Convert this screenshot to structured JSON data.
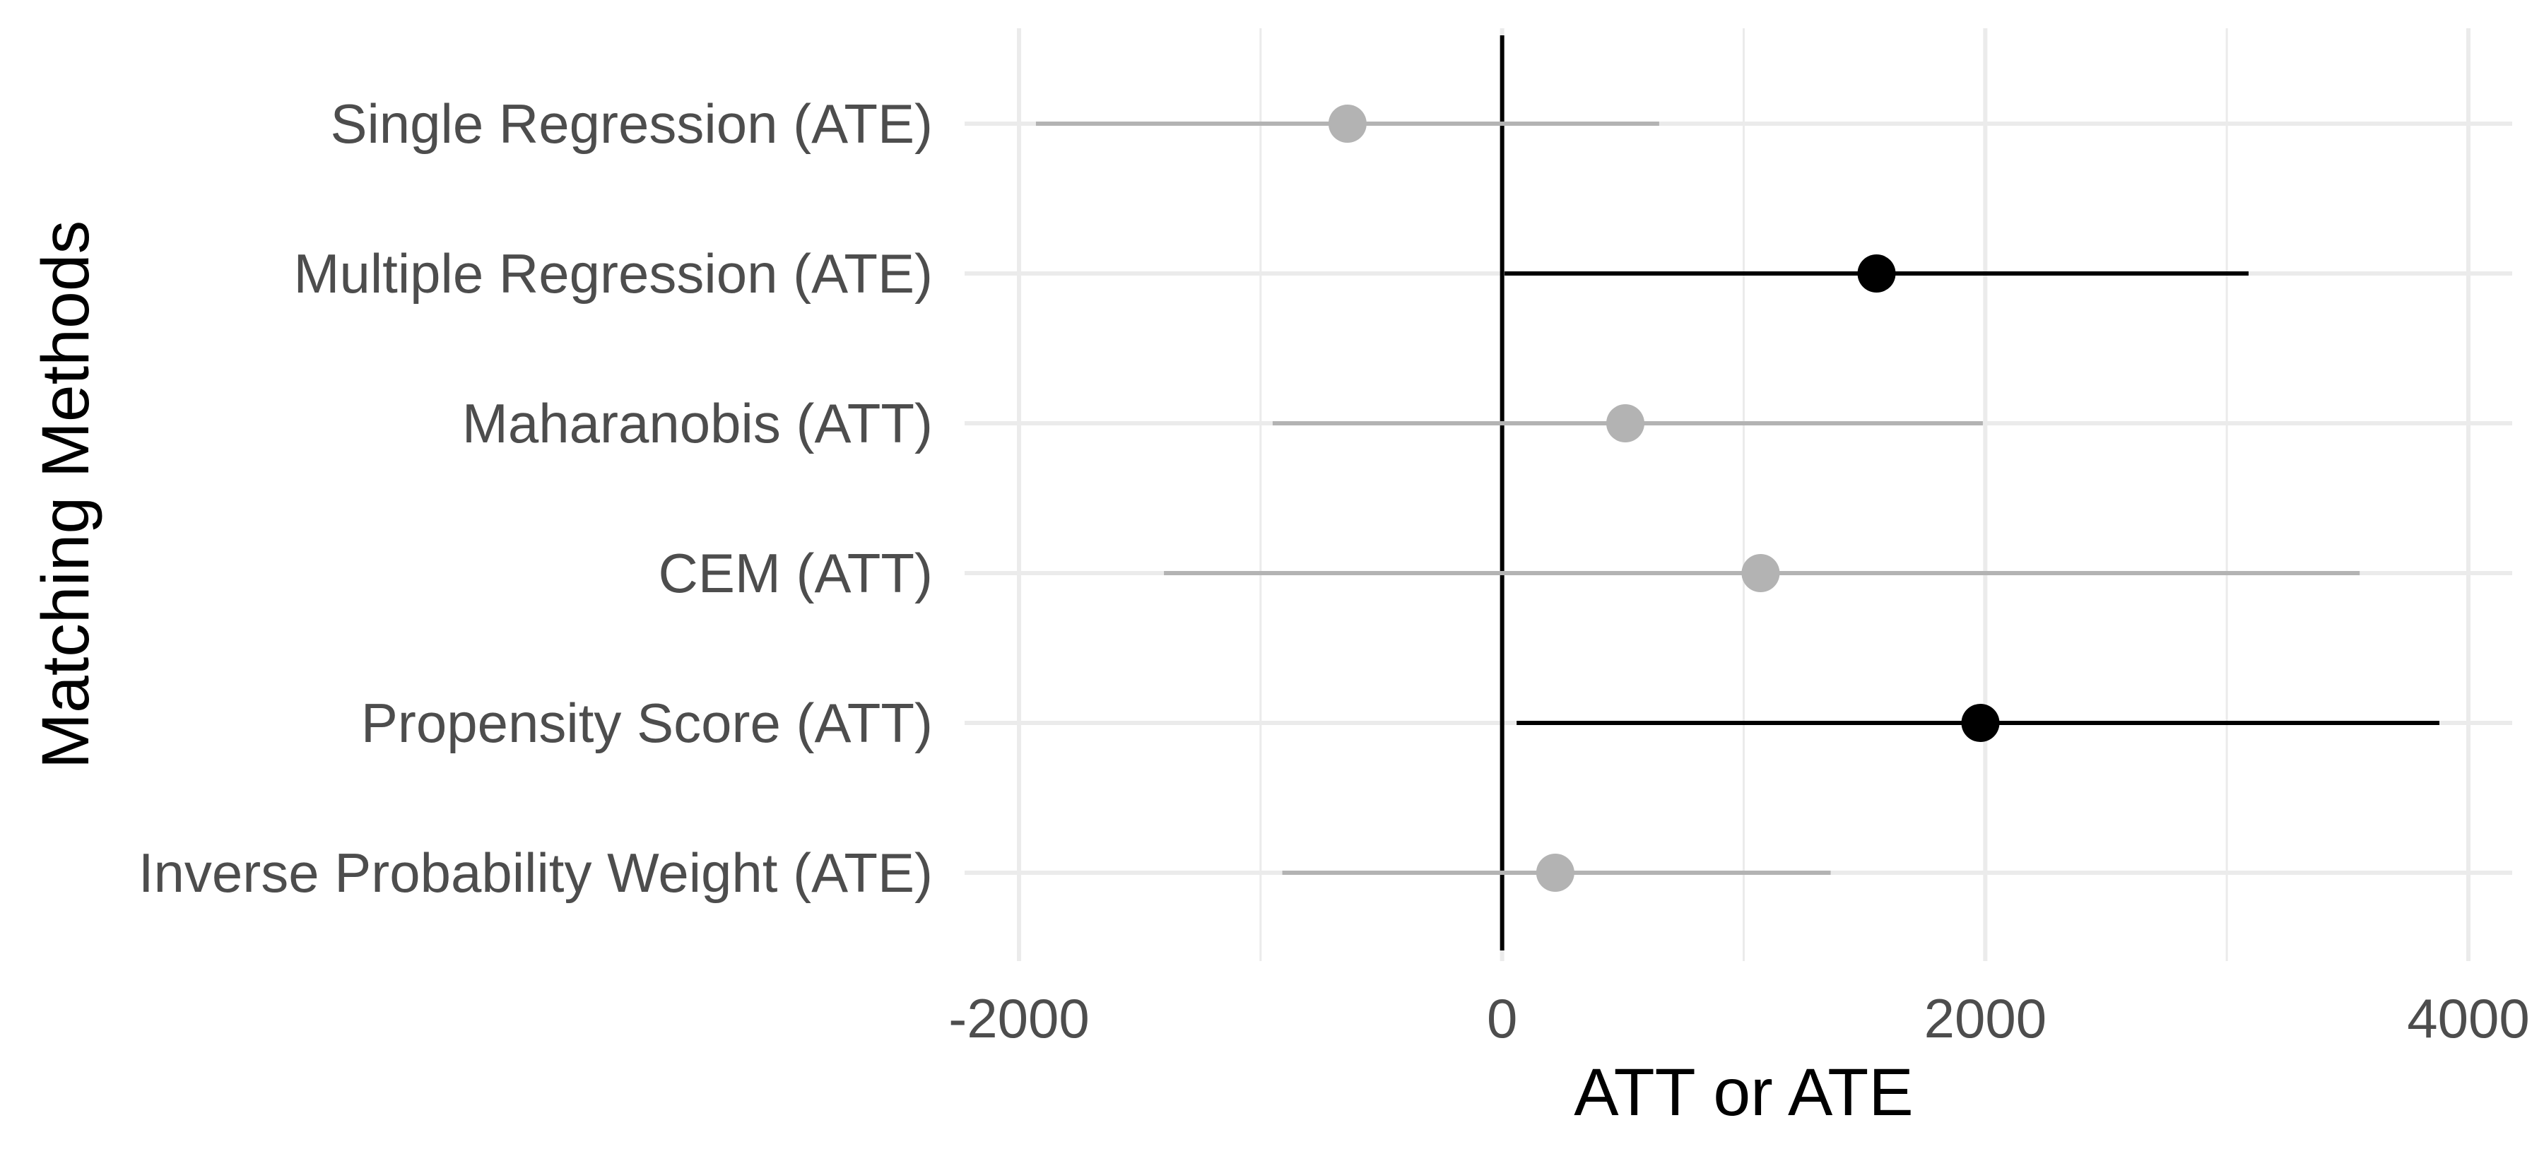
{
  "chart_data": {
    "type": "scatter",
    "subtype": "point-range",
    "title": "",
    "xlabel": "ATT or ATE",
    "ylabel": "Matching Methods",
    "xlim": [
      -2100,
      4100
    ],
    "xticks": [
      -2000,
      0,
      2000,
      4000
    ],
    "xtick_labels": [
      "-2000",
      "0",
      "2000",
      "4000"
    ],
    "reference_line_x": 0,
    "grid": true,
    "legend": "none",
    "colors": {
      "significant": "#000000",
      "not_significant": "#b3b3b3",
      "grid": "#ebebeb",
      "text": "#4d4d4d"
    },
    "rows": [
      {
        "label": "Single Regression (ATE)",
        "estimate": -640,
        "lower": -1930,
        "upper": 650,
        "significant": false
      },
      {
        "label": "Multiple Regression (ATE)",
        "estimate": 1550,
        "lower": 10,
        "upper": 3090,
        "significant": true
      },
      {
        "label": "Maharanobis (ATT)",
        "estimate": 510,
        "lower": -950,
        "upper": 1990,
        "significant": false
      },
      {
        "label": "CEM (ATT)",
        "estimate": 1070,
        "lower": -1400,
        "upper": 3550,
        "significant": false
      },
      {
        "label": "Propensity Score (ATT)",
        "estimate": 1980,
        "lower": 60,
        "upper": 3880,
        "significant": true
      },
      {
        "label": "Inverse Probability Weight (ATE)",
        "estimate": 220,
        "lower": -910,
        "upper": 1360,
        "significant": false
      }
    ]
  }
}
